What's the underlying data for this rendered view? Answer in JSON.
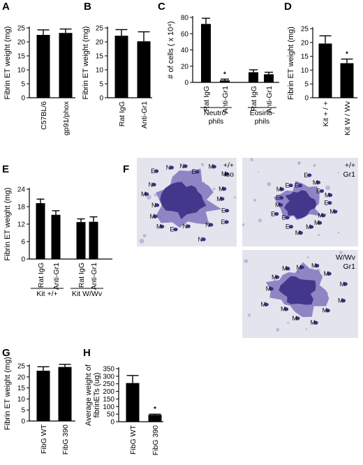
{
  "panel_letters": [
    "A",
    "B",
    "C",
    "D",
    "E",
    "F",
    "G",
    "H"
  ],
  "chart_data": [
    {
      "panel": "A",
      "type": "bar",
      "ylabel": "Fibrin ET weight (mg)",
      "ylim": [
        0,
        25
      ],
      "yticks": [
        "0",
        "5",
        "10",
        "15",
        "20",
        "25"
      ],
      "categories": [
        "C57BL/6",
        "gp91/phox"
      ],
      "values": [
        22.5,
        23.2
      ],
      "errors": [
        1.8,
        1.4
      ]
    },
    {
      "panel": "B",
      "type": "bar",
      "ylabel": "Fibrin ET weight (mg)",
      "ylim": [
        0,
        25
      ],
      "yticks": [
        "0",
        "5",
        "10",
        "15",
        "20",
        "25"
      ],
      "categories": [
        "Rat IgG",
        "Anti-Gr1"
      ],
      "values": [
        22.2,
        20.2
      ],
      "errors": [
        2.2,
        3.4
      ]
    },
    {
      "panel": "C",
      "type": "bar",
      "ylabel": "# of cells ( x 10⁴)",
      "ylim": [
        0,
        80
      ],
      "yticks": [
        "0",
        "20",
        "40",
        "60",
        "80"
      ],
      "categories": [
        "Rat IgG",
        "Anti-Gr1",
        "Rat IgG",
        "Anti-Gr1"
      ],
      "groups": [
        "Neutro-phils",
        "Eosino-phils"
      ],
      "values": [
        72,
        2.5,
        12.5,
        10
      ],
      "errors": [
        7,
        1.5,
        3,
        2.5
      ],
      "significance": [
        "",
        "*",
        "",
        ""
      ]
    },
    {
      "panel": "D",
      "type": "bar",
      "ylabel": "Fibrin ET weight (mg)",
      "ylim": [
        0,
        25
      ],
      "yticks": [
        "0",
        "5",
        "10",
        "15",
        "20",
        "25"
      ],
      "categories": [
        "Kit + / +",
        "Kit W / Wv"
      ],
      "values": [
        19.6,
        12.5
      ],
      "errors": [
        2.8,
        1.5
      ],
      "significance": [
        "",
        "*"
      ]
    },
    {
      "panel": "E",
      "type": "bar",
      "ylabel": "Fibrin ET weight (mg)",
      "ylim": [
        0,
        24
      ],
      "yticks": [
        "0",
        "6",
        "12",
        "18",
        "24"
      ],
      "categories": [
        "Rat IgG",
        "Anti-Gr1",
        "Rat IgG",
        "Anti-Gr1"
      ],
      "groups": [
        "Kit +/+",
        "Kit W/Wv"
      ],
      "values": [
        19.2,
        15.2,
        12.7,
        12.8
      ],
      "errors": [
        1.4,
        1.4,
        1.1,
        1.7
      ]
    },
    {
      "panel": "G",
      "type": "bar",
      "ylabel": "Fibrin ET weight (mg)",
      "ylim": [
        0,
        25
      ],
      "yticks": [
        "0",
        "5",
        "10",
        "15",
        "20",
        "25"
      ],
      "categories": [
        "FibG WT",
        "FibG 390"
      ],
      "values": [
        22.8,
        24.5
      ],
      "errors": [
        1.8,
        1.2
      ]
    },
    {
      "panel": "H",
      "type": "bar",
      "ylabel": "Average weight of fibrinETs (ug)",
      "ylim": [
        0,
        350
      ],
      "yticks": [
        "0",
        "50",
        "100",
        "150",
        "200",
        "250",
        "300",
        "350"
      ],
      "categories": [
        "FibG WT",
        "FibG 390"
      ],
      "values": [
        255,
        45
      ],
      "errors": [
        50,
        5
      ],
      "significance": [
        "",
        "*"
      ]
    }
  ],
  "micrographs": [
    {
      "corner_lines": [
        "+/+",
        "Iso"
      ],
      "cells": [
        "E",
        "E",
        "N",
        "N",
        "N",
        "E",
        "M",
        "M",
        "N",
        "M",
        "N",
        "E",
        "N",
        "N",
        "E",
        "M",
        "M",
        "M",
        "M"
      ]
    },
    {
      "corner_lines": [
        "+/+",
        "Gr1"
      ],
      "cells": [
        "M",
        "M",
        "M",
        "M",
        "M",
        "E",
        "E",
        "E",
        "M",
        "E",
        "M",
        "E",
        "E",
        "E",
        "M",
        "E",
        "M",
        "E"
      ]
    },
    {
      "corner_lines": [
        "W/Wv",
        "Gr1"
      ],
      "cells": [
        "M",
        "M",
        "M",
        "M",
        "M",
        "M",
        "M",
        "M",
        "M",
        "M",
        "M",
        "M",
        "M"
      ]
    }
  ],
  "colors": {
    "bar": "#000000",
    "stain_dark": "#3b2f86",
    "stain_mid": "#7366b5",
    "background_light": "#e4e4ee"
  }
}
